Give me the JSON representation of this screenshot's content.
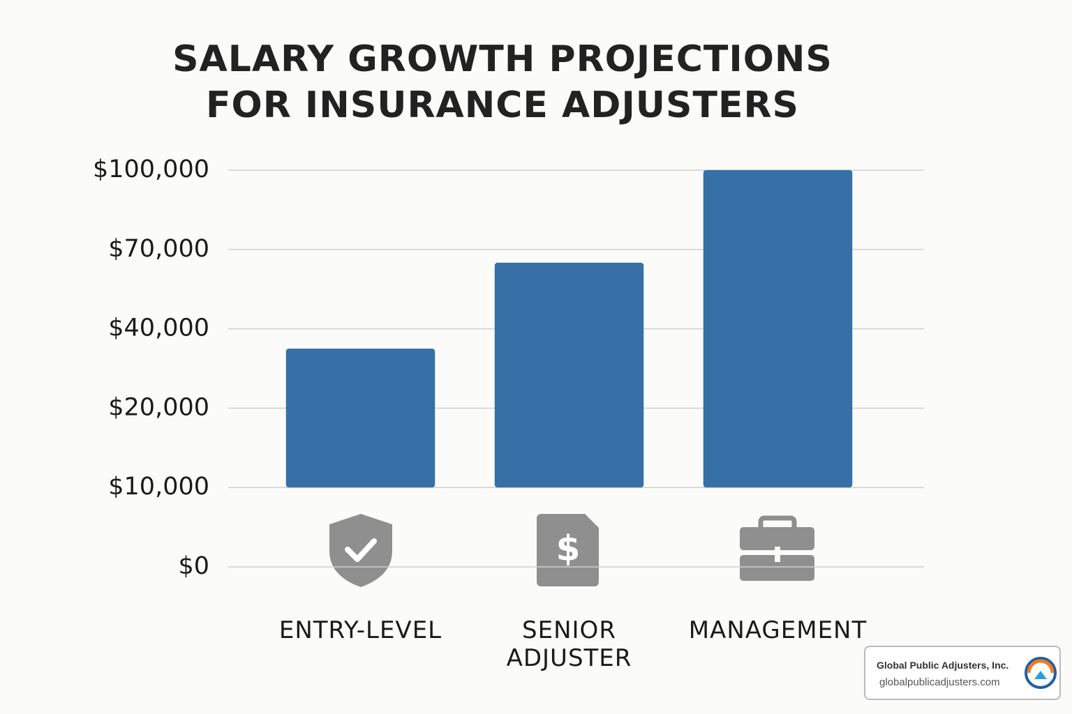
{
  "chart_data": {
    "type": "bar",
    "title": "SALARY GROWTH PROJECTIONS FOR INSURANCE ADJUSTERS",
    "categories": [
      "ENTRY-LEVEL",
      "SENIOR ADJUSTER",
      "MANAGEMENT"
    ],
    "values": [
      35000,
      65000,
      100000
    ],
    "color": "#3670a6",
    "ylim": [
      0,
      100000
    ],
    "yticks": [
      {
        "value": 0,
        "label": "$0"
      },
      {
        "value": 10000,
        "label": "$10,000"
      },
      {
        "value": 20000,
        "label": "$20,000"
      },
      {
        "value": 40000,
        "label": "$40,000"
      },
      {
        "value": 70000,
        "label": "$70,000"
      },
      {
        "value": 100000,
        "label": "$100,000"
      }
    ],
    "grid": true
  },
  "watermark": {
    "name": "Global Public Adjusters, Inc.",
    "url": "globalpublicadjusters.com"
  }
}
